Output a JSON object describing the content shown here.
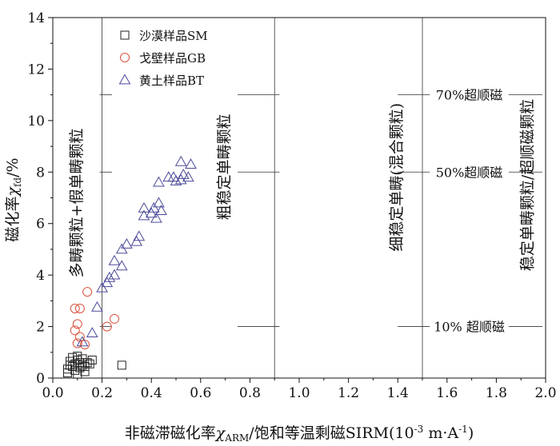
{
  "chart_data": {
    "type": "scatter",
    "xlabel": "非磁滞磁化率χARM/饱和等温剩磁SIRM(10-3 m·A-1)",
    "xlabel_parts": {
      "prefix": "非磁滞磁化率",
      "chi": "χ",
      "chi_sub": "ARM",
      "middle": "/饱和等温剩磁SIRM(10",
      "exp1": "-3",
      "unit": " m·A",
      "exp2": "-1",
      "close": ")"
    },
    "ylabel": "磁化率χfd/%",
    "ylabel_parts": {
      "prefix": "磁化率",
      "chi": "χ",
      "chi_sub": "fd",
      "suffix": "/%"
    },
    "xlim": [
      0,
      2.0
    ],
    "ylim": [
      0,
      14
    ],
    "xticks": [
      "0.0",
      "0.2",
      "0.4",
      "0.6",
      "0.8",
      "1.0",
      "1.2",
      "1.4",
      "1.6",
      "1.8",
      "2.0"
    ],
    "yticks": [
      "0",
      "2",
      "4",
      "6",
      "8",
      "10",
      "12",
      "14"
    ],
    "legend_position": "top-left",
    "vertical_lines": [
      0.2,
      0.9,
      1.5
    ],
    "horizontal_lines": [
      {
        "y": 2,
        "label": "10% 超顺磁"
      },
      {
        "y": 8,
        "label": "50%超顺磁"
      },
      {
        "y": 11,
        "label": "70%超顺磁"
      }
    ],
    "region_labels": [
      "多畴颗粒+假单畴颗粒",
      "粗稳定单畴颗粒",
      "细稳定单畴(混合颗粒)",
      "稳定单畴颗粒/超顺磁颗粒"
    ],
    "series": [
      {
        "name": "沙漠样品SM",
        "marker": "square",
        "color": "#222222",
        "points": [
          [
            0.06,
            0.35
          ],
          [
            0.07,
            0.5
          ],
          [
            0.07,
            0.65
          ],
          [
            0.08,
            0.8
          ],
          [
            0.08,
            0.45
          ],
          [
            0.09,
            0.3
          ],
          [
            0.09,
            0.55
          ],
          [
            0.1,
            0.7
          ],
          [
            0.1,
            0.85
          ],
          [
            0.11,
            0.4
          ],
          [
            0.11,
            0.6
          ],
          [
            0.12,
            0.5
          ],
          [
            0.12,
            0.75
          ],
          [
            0.13,
            0.25
          ],
          [
            0.13,
            0.45
          ],
          [
            0.14,
            0.6
          ],
          [
            0.15,
            0.55
          ],
          [
            0.16,
            0.7
          ],
          [
            0.06,
            0.2
          ],
          [
            0.1,
            0.15
          ],
          [
            0.28,
            0.5
          ]
        ]
      },
      {
        "name": "戈壁样品GB",
        "marker": "circle",
        "color": "#d9533c",
        "points": [
          [
            0.09,
            2.7
          ],
          [
            0.11,
            2.7
          ],
          [
            0.1,
            2.1
          ],
          [
            0.09,
            1.85
          ],
          [
            0.1,
            1.35
          ],
          [
            0.11,
            1.6
          ],
          [
            0.13,
            1.3
          ],
          [
            0.14,
            3.35
          ],
          [
            0.22,
            2.0
          ],
          [
            0.25,
            2.3
          ]
        ]
      },
      {
        "name": "黄土样品BT",
        "marker": "triangle",
        "color": "#4a4a9a",
        "points": [
          [
            0.12,
            1.4
          ],
          [
            0.16,
            1.75
          ],
          [
            0.18,
            2.75
          ],
          [
            0.2,
            3.5
          ],
          [
            0.22,
            3.7
          ],
          [
            0.23,
            3.9
          ],
          [
            0.25,
            4.0
          ],
          [
            0.25,
            4.55
          ],
          [
            0.28,
            4.35
          ],
          [
            0.28,
            5.0
          ],
          [
            0.3,
            5.2
          ],
          [
            0.34,
            5.3
          ],
          [
            0.35,
            5.5
          ],
          [
            0.37,
            6.3
          ],
          [
            0.37,
            6.6
          ],
          [
            0.4,
            6.4
          ],
          [
            0.41,
            6.6
          ],
          [
            0.42,
            6.2
          ],
          [
            0.44,
            6.5
          ],
          [
            0.43,
            6.8
          ],
          [
            0.43,
            7.6
          ],
          [
            0.47,
            7.8
          ],
          [
            0.49,
            7.8
          ],
          [
            0.5,
            7.65
          ],
          [
            0.52,
            7.7
          ],
          [
            0.52,
            8.4
          ],
          [
            0.53,
            7.9
          ],
          [
            0.55,
            7.8
          ],
          [
            0.56,
            8.3
          ]
        ]
      }
    ]
  }
}
